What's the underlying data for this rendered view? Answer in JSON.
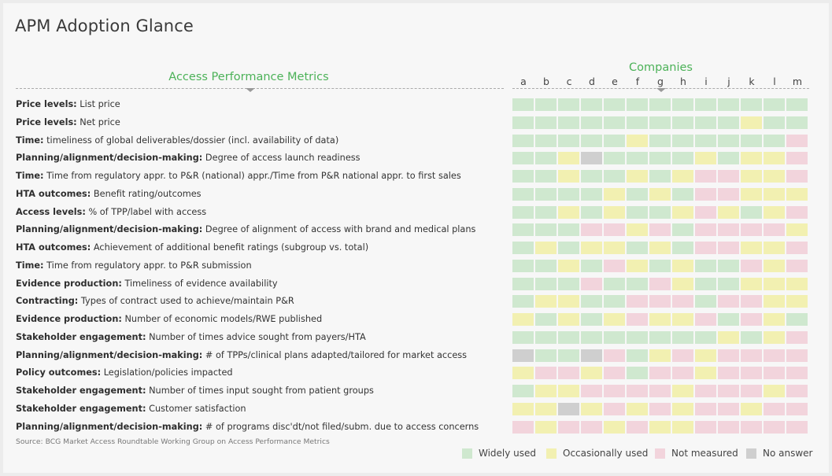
{
  "title": "APM Adoption Glance",
  "metrics_header": "Access Performance Metrics",
  "companies_header": "Companies",
  "source": "Source: BCG Market Access Roundtable Working Group on Access Performance Metrics",
  "colors": {
    "W": "#cfe8cf",
    "O": "#f2f0b1",
    "N": "#f2d4dc",
    "A": "#cfcfcf",
    "accent": "#4cb258"
  },
  "chart_data": {
    "type": "heatmap",
    "title": "APM Adoption Glance",
    "xlabel": "Companies",
    "ylabel": "Access Performance Metrics",
    "columns": [
      "a",
      "b",
      "c",
      "d",
      "e",
      "f",
      "g",
      "h",
      "i",
      "j",
      "k",
      "l",
      "m"
    ],
    "legend": [
      {
        "code": "W",
        "label": "Widely used"
      },
      {
        "code": "O",
        "label": "Occasionally used"
      },
      {
        "code": "N",
        "label": "Not measured"
      },
      {
        "code": "A",
        "label": "No answer"
      }
    ],
    "rows": [
      {
        "category": "Price levels:",
        "label": "List price",
        "values": [
          "W",
          "W",
          "W",
          "W",
          "W",
          "W",
          "W",
          "W",
          "W",
          "W",
          "W",
          "W",
          "W"
        ]
      },
      {
        "category": "Price levels:",
        "label": "Net price",
        "values": [
          "W",
          "W",
          "W",
          "W",
          "W",
          "W",
          "W",
          "W",
          "W",
          "W",
          "O",
          "W",
          "W"
        ]
      },
      {
        "category": "Time:",
        "label": "timeliness of global deliverables/dossier (incl. availability of data)",
        "values": [
          "W",
          "W",
          "W",
          "W",
          "W",
          "O",
          "W",
          "W",
          "W",
          "W",
          "W",
          "W",
          "N"
        ]
      },
      {
        "category": "Planning/alignment/decision-making:",
        "label": "Degree of access launch readiness",
        "values": [
          "W",
          "W",
          "O",
          "A",
          "W",
          "W",
          "W",
          "W",
          "O",
          "W",
          "O",
          "O",
          "N"
        ]
      },
      {
        "category": "Time:",
        "label": "Time from regulatory appr. to P&R (national) appr./Time from P&R national appr. to first sales",
        "values": [
          "W",
          "W",
          "O",
          "W",
          "W",
          "O",
          "W",
          "O",
          "N",
          "N",
          "O",
          "O",
          "N"
        ]
      },
      {
        "category": "HTA outcomes:",
        "label": "Benefit rating/outcomes",
        "values": [
          "W",
          "W",
          "W",
          "W",
          "O",
          "W",
          "O",
          "W",
          "N",
          "N",
          "O",
          "O",
          "O"
        ]
      },
      {
        "category": "Access levels:",
        "label": "% of TPP/label with access",
        "values": [
          "W",
          "W",
          "O",
          "W",
          "O",
          "W",
          "W",
          "O",
          "N",
          "O",
          "W",
          "O",
          "N"
        ]
      },
      {
        "category": "Planning/alignment/decision-making:",
        "label": "Degree of alignment of access with brand and medical plans",
        "values": [
          "W",
          "W",
          "W",
          "N",
          "N",
          "O",
          "N",
          "W",
          "N",
          "N",
          "N",
          "N",
          "O"
        ]
      },
      {
        "category": "HTA outcomes:",
        "label": "Achievement of additional benefit ratings (subgroup vs. total)",
        "values": [
          "W",
          "O",
          "W",
          "O",
          "O",
          "W",
          "O",
          "W",
          "N",
          "N",
          "O",
          "O",
          "N"
        ]
      },
      {
        "category": "Time:",
        "label": "Time from regulatory appr. to P&R submission",
        "values": [
          "W",
          "W",
          "O",
          "W",
          "N",
          "O",
          "W",
          "O",
          "W",
          "W",
          "N",
          "O",
          "N"
        ]
      },
      {
        "category": "Evidence production:",
        "label": "Timeliness of evidence availability",
        "values": [
          "W",
          "W",
          "W",
          "N",
          "W",
          "W",
          "N",
          "O",
          "W",
          "W",
          "O",
          "O",
          "O"
        ]
      },
      {
        "category": "Contracting:",
        "label": "Types of contract used to achieve/maintain P&R",
        "values": [
          "W",
          "O",
          "O",
          "W",
          "W",
          "N",
          "N",
          "N",
          "W",
          "N",
          "N",
          "O",
          "O"
        ]
      },
      {
        "category": "Evidence production:",
        "label": "Number of economic models/RWE published",
        "values": [
          "O",
          "W",
          "O",
          "W",
          "O",
          "N",
          "O",
          "O",
          "N",
          "W",
          "N",
          "O",
          "W"
        ]
      },
      {
        "category": "Stakeholder engagement:",
        "label": "Number of times advice sought from payers/HTA",
        "values": [
          "W",
          "W",
          "W",
          "W",
          "W",
          "W",
          "W",
          "W",
          "W",
          "O",
          "W",
          "O",
          "N"
        ]
      },
      {
        "category": "Planning/alignment/decision-making:",
        "label": "# of TPPs/clinical plans adapted/tailored for market access",
        "values": [
          "A",
          "W",
          "W",
          "A",
          "N",
          "W",
          "O",
          "N",
          "O",
          "N",
          "N",
          "N",
          "N"
        ]
      },
      {
        "category": "Policy outcomes:",
        "label": "Legislation/policies impacted",
        "values": [
          "O",
          "N",
          "N",
          "O",
          "N",
          "W",
          "N",
          "N",
          "O",
          "N",
          "N",
          "N",
          "N"
        ]
      },
      {
        "category": "Stakeholder engagement:",
        "label": "Number of times input sought from patient groups",
        "values": [
          "W",
          "O",
          "O",
          "N",
          "N",
          "N",
          "N",
          "O",
          "N",
          "N",
          "N",
          "O",
          "N"
        ]
      },
      {
        "category": "Stakeholder engagement:",
        "label": "Customer satisfaction",
        "values": [
          "O",
          "O",
          "A",
          "O",
          "N",
          "O",
          "N",
          "O",
          "N",
          "N",
          "O",
          "N",
          "N"
        ]
      },
      {
        "category": "Planning/alignment/decision-making:",
        "label": "# of programs disc'dt/not filed/subm. due to access concerns",
        "values": [
          "N",
          "O",
          "N",
          "N",
          "O",
          "N",
          "O",
          "O",
          "N",
          "N",
          "N",
          "N",
          "N"
        ]
      }
    ]
  }
}
